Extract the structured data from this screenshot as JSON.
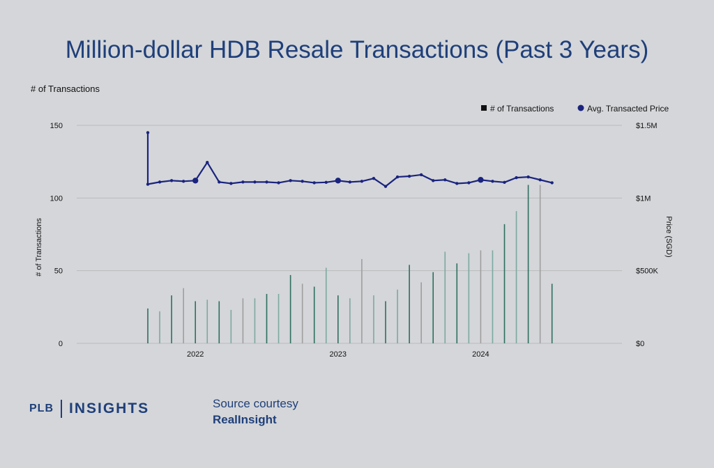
{
  "title": "Million-dollar HDB Resale Transactions (Past 3 Years)",
  "top_left_label": "# of Transactions",
  "brand": {
    "prefix": "PLB",
    "name": "INSIGHTS"
  },
  "source": {
    "line1": "Source courtesy",
    "line2": "RealInsight"
  },
  "colors": {
    "price_line": "#1a237e",
    "bar_dark": "#2e6e5f",
    "bar_light": "#7da8a0",
    "bar_grey": "#9e9e9e",
    "title": "#1f3f7a",
    "grid": "#b8babd"
  },
  "chart_data": {
    "type": "bar+line",
    "ylabel_left": "# of Transactions",
    "ylabel_right": "Price (SGD)",
    "ylim_left": [
      0,
      150
    ],
    "ylim_right": [
      0,
      1500000
    ],
    "yticks_left": [
      "0",
      "50",
      "100",
      "150"
    ],
    "yticks_right": [
      "$0",
      "$500K",
      "$1M",
      "$1.5M"
    ],
    "x_tick_labels": [
      "2022",
      "2023",
      "2024"
    ],
    "legend": [
      "# of Transactions",
      "Avg. Transacted Price"
    ],
    "legend_position": "top-right",
    "grid": true,
    "months": [
      "2021-09",
      "2021-10",
      "2021-11",
      "2021-12",
      "2022-01",
      "2022-02",
      "2022-03",
      "2022-04",
      "2022-05",
      "2022-06",
      "2022-07",
      "2022-08",
      "2022-09",
      "2022-10",
      "2022-11",
      "2022-12",
      "2023-01",
      "2023-02",
      "2023-03",
      "2023-04",
      "2023-05",
      "2023-06",
      "2023-07",
      "2023-08",
      "2023-09",
      "2023-10",
      "2023-11",
      "2023-12",
      "2024-01",
      "2024-02",
      "2024-03",
      "2024-04",
      "2024-05",
      "2024-06",
      "2024-07"
    ],
    "series": [
      {
        "name": "# of Transactions",
        "type": "bar",
        "values": [
          24,
          22,
          33,
          38,
          29,
          30,
          29,
          23,
          31,
          31,
          34,
          34,
          47,
          41,
          39,
          52,
          33,
          31,
          58,
          33,
          29,
          37,
          54,
          42,
          49,
          63,
          55,
          62,
          64,
          64,
          82,
          91,
          109,
          109,
          41
        ]
      },
      {
        "name": "Avg. Transacted Price",
        "type": "line",
        "start_value": 1450000,
        "values": [
          1095000,
          1110000,
          1120000,
          1115000,
          1120000,
          1245000,
          1110000,
          1100000,
          1110000,
          1110000,
          1110000,
          1105000,
          1120000,
          1115000,
          1105000,
          1108000,
          1120000,
          1110000,
          1115000,
          1135000,
          1080000,
          1145000,
          1150000,
          1160000,
          1120000,
          1125000,
          1100000,
          1105000,
          1125000,
          1115000,
          1108000,
          1140000,
          1145000,
          1125000,
          1105000
        ]
      }
    ]
  }
}
